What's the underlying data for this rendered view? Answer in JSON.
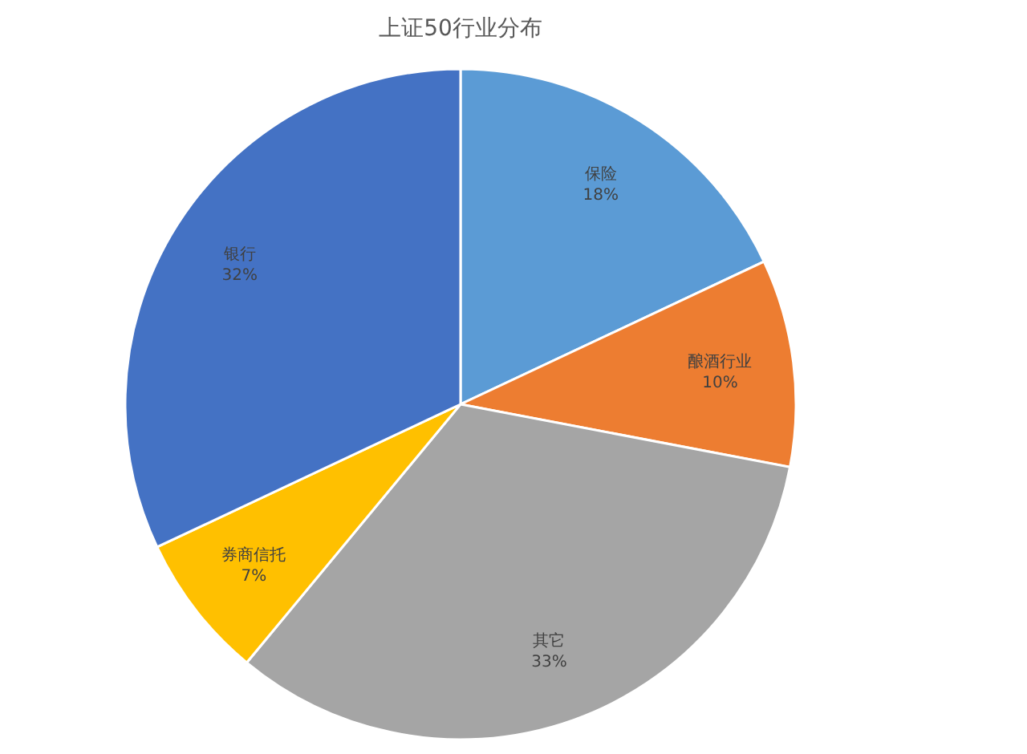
{
  "chart_data": {
    "type": "pie",
    "title": "上证50行业分布",
    "categories": [
      "保险",
      "酿酒行业",
      "其它",
      "券商信托",
      "银行"
    ],
    "values": [
      18,
      10,
      33,
      7,
      32
    ],
    "value_labels": [
      "18%",
      "10%",
      "33%",
      "7%",
      "32%"
    ],
    "colors": [
      "#5b9bd5",
      "#ed7d31",
      "#a5a5a5",
      "#ffc000",
      "#4472c4"
    ],
    "legend": false
  }
}
